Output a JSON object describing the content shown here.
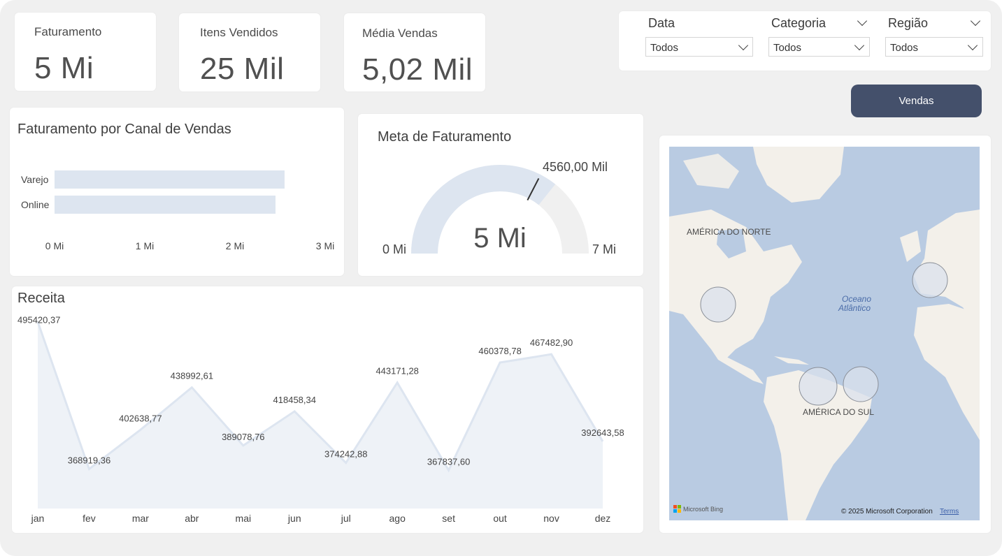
{
  "kpis": [
    {
      "title": "Faturamento",
      "value": "5 Mi"
    },
    {
      "title": "Itens Vendidos",
      "value": "25 Mil"
    },
    {
      "title": "Média Vendas",
      "value": "5,02 Mil"
    }
  ],
  "filters": {
    "data": {
      "label": "Data",
      "selected": "Todos"
    },
    "categoria": {
      "label": "Categoria",
      "selected": "Todos"
    },
    "regiao": {
      "label": "Região",
      "selected": "Todos"
    }
  },
  "vendas_button": "Vendas",
  "channel_chart": {
    "title": "Faturamento por Canal de Vendas",
    "bars": [
      {
        "label": "Varejo",
        "value": 2.55
      },
      {
        "label": "Online",
        "value": 2.45
      }
    ],
    "ticks": [
      "0 Mi",
      "1 Mi",
      "2 Mi",
      "3 Mi"
    ],
    "max": 3,
    "bar_color": "#dde5f0"
  },
  "gauge": {
    "title": "Meta de Faturamento",
    "value_label": "5 Mi",
    "value": 5,
    "min": 0,
    "max": 7,
    "target": 4.56,
    "target_label": "4560,00 Mil",
    "min_label": "0 Mi",
    "max_label": "7 Mi",
    "fill_color": "#dde5f0",
    "track_color": "#f0f0f0"
  },
  "chart_data": {
    "type": "area",
    "title": "Receita",
    "categories": [
      "jan",
      "fev",
      "mar",
      "abr",
      "mai",
      "jun",
      "jul",
      "ago",
      "set",
      "out",
      "nov",
      "dez"
    ],
    "values": [
      495420.37,
      368919.36,
      402638.77,
      438992.61,
      389078.76,
      418458.34,
      374242.88,
      443171.28,
      367837.6,
      460378.78,
      467482.9,
      392643.58
    ],
    "labels": [
      "495420,37",
      "368919,36",
      "402638,77",
      "438992,61",
      "389078,76",
      "418458,34",
      "374242,88",
      "443171,28",
      "367837,60",
      "460378,78",
      "467482,90",
      "392643,58"
    ],
    "ylim": [
      335000,
      497000
    ],
    "line_color": "#dde5f0",
    "fill_color": "#eef2f7"
  },
  "map": {
    "labels": {
      "north_america": "AMÉRICA DO NORTE",
      "south_america": "AMÉRICA DO SUL",
      "ocean_1": "Oceano",
      "ocean_2": "Atlântico"
    },
    "bing": "Microsoft Bing",
    "copyright": "© 2025 Microsoft Corporation",
    "terms": "Terms",
    "water_color": "#b9cbe2",
    "land_color": "#f3f0ea"
  }
}
